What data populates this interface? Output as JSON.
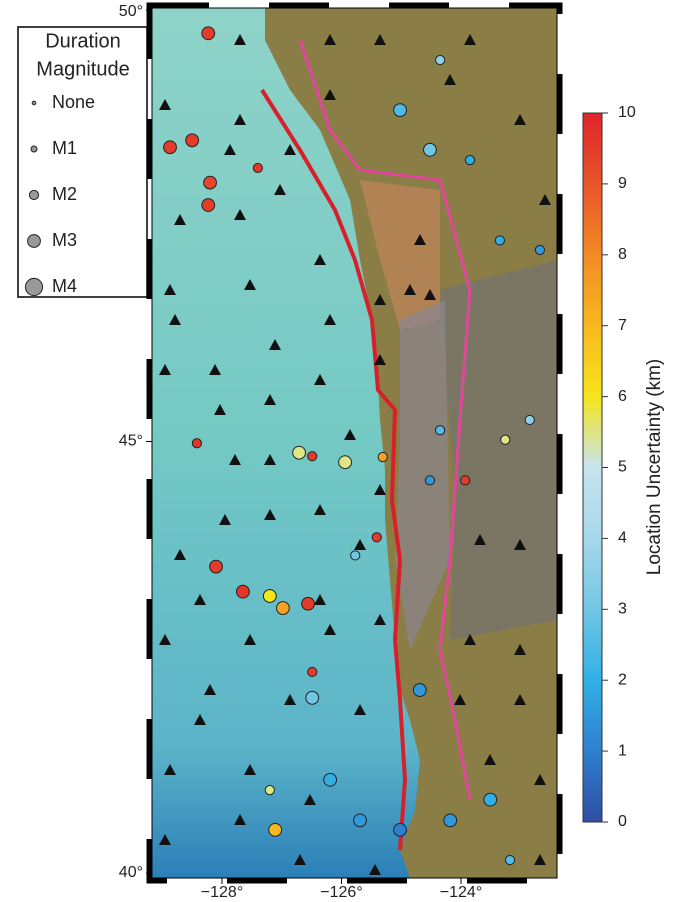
{
  "map": {
    "lat_ticks": [
      {
        "value": 50,
        "label": "50°"
      },
      {
        "value": 45,
        "label": "45°"
      },
      {
        "value": 40,
        "label": "40°"
      }
    ],
    "lon_ticks": [
      {
        "value": -128,
        "label": "−128°"
      },
      {
        "value": -126,
        "label": "−126°"
      },
      {
        "value": -124,
        "label": "−124°"
      }
    ],
    "legend": {
      "title": [
        "Duration",
        "Magnitude"
      ],
      "entries": [
        "None",
        "M1",
        "M2",
        "M3",
        "M4"
      ]
    },
    "colorbar": {
      "label": "Location Uncertainty (km)",
      "lim": [
        0,
        10
      ],
      "ticks": [
        0,
        1,
        2,
        3,
        4,
        5,
        6,
        7,
        8,
        9,
        10
      ],
      "colors": [
        "#2f4fa2",
        "#2f7fd0",
        "#31b0e6",
        "#71c6e4",
        "#a6d8ec",
        "#c7e4ee",
        "#f5e51b",
        "#f8b81f",
        "#f28a25",
        "#e8542a",
        "#e0242a"
      ]
    },
    "events": [
      {
        "lon": -128.23,
        "lat": 49.73,
        "unc": 9.5,
        "mag": 3
      },
      {
        "lon": -128.87,
        "lat": 48.41,
        "unc": 9.5,
        "mag": 3
      },
      {
        "lon": -128.5,
        "lat": 48.49,
        "unc": 9.5,
        "mag": 3
      },
      {
        "lon": -128.2,
        "lat": 48.0,
        "unc": 9.3,
        "mag": 3
      },
      {
        "lon": -128.23,
        "lat": 47.74,
        "unc": 9.5,
        "mag": 3
      },
      {
        "lon": -127.4,
        "lat": 48.17,
        "unc": 9.6,
        "mag": 2
      },
      {
        "lon": -128.42,
        "lat": 44.98,
        "unc": 9.6,
        "mag": 2
      },
      {
        "lon": -126.71,
        "lat": 44.87,
        "unc": 5.5,
        "mag": 3
      },
      {
        "lon": -126.49,
        "lat": 44.83,
        "unc": 9.5,
        "mag": 2
      },
      {
        "lon": -125.94,
        "lat": 44.76,
        "unc": 5.5,
        "mag": 3
      },
      {
        "lon": -125.31,
        "lat": 44.82,
        "unc": 7.5,
        "mag": 2
      },
      {
        "lon": -128.1,
        "lat": 43.55,
        "unc": 9.5,
        "mag": 3
      },
      {
        "lon": -127.65,
        "lat": 43.26,
        "unc": 9.6,
        "mag": 3
      },
      {
        "lon": -127.2,
        "lat": 43.21,
        "unc": 6,
        "mag": 3
      },
      {
        "lon": -126.98,
        "lat": 43.07,
        "unc": 7.5,
        "mag": 3
      },
      {
        "lon": -126.56,
        "lat": 43.12,
        "unc": 9.5,
        "mag": 3
      },
      {
        "lon": -126.49,
        "lat": 42.33,
        "unc": 9.5,
        "mag": 2
      },
      {
        "lon": -126.49,
        "lat": 42.03,
        "unc": 3,
        "mag": 3
      },
      {
        "lon": -125.77,
        "lat": 43.68,
        "unc": 3,
        "mag": 2
      },
      {
        "lon": -125.41,
        "lat": 43.89,
        "unc": 9.5,
        "mag": 2
      },
      {
        "lon": -125.02,
        "lat": 48.84,
        "unc": 2.5,
        "mag": 3
      },
      {
        "lon": -124.52,
        "lat": 48.38,
        "unc": 3,
        "mag": 3
      },
      {
        "lon": -123.85,
        "lat": 48.26,
        "unc": 2,
        "mag": 2
      },
      {
        "lon": -124.35,
        "lat": 49.42,
        "unc": 3.5,
        "mag": 2
      },
      {
        "lon": -123.35,
        "lat": 47.33,
        "unc": 2,
        "mag": 2
      },
      {
        "lon": -122.68,
        "lat": 47.22,
        "unc": 1.5,
        "mag": 2
      },
      {
        "lon": -124.35,
        "lat": 45.13,
        "unc": 2.5,
        "mag": 2
      },
      {
        "lon": -124.52,
        "lat": 44.55,
        "unc": 1.5,
        "mag": 2
      },
      {
        "lon": -123.26,
        "lat": 45.02,
        "unc": 5.5,
        "mag": 2
      },
      {
        "lon": -122.85,
        "lat": 45.25,
        "unc": 3.5,
        "mag": 2
      },
      {
        "lon": -123.93,
        "lat": 44.55,
        "unc": 9.5,
        "mag": 2
      },
      {
        "lon": -124.69,
        "lat": 42.12,
        "unc": 1.5,
        "mag": 3
      },
      {
        "lon": -126.19,
        "lat": 41.08,
        "unc": 2,
        "mag": 3
      },
      {
        "lon": -125.69,
        "lat": 40.61,
        "unc": 1.5,
        "mag": 3
      },
      {
        "lon": -125.02,
        "lat": 40.5,
        "unc": 1,
        "mag": 3
      },
      {
        "lon": -124.18,
        "lat": 40.61,
        "unc": 1.5,
        "mag": 3
      },
      {
        "lon": -123.51,
        "lat": 40.85,
        "unc": 2,
        "mag": 3
      },
      {
        "lon": -123.18,
        "lat": 40.15,
        "unc": 2.5,
        "mag": 2
      },
      {
        "lon": -127.2,
        "lat": 40.96,
        "unc": 5.5,
        "mag": 2
      },
      {
        "lon": -127.11,
        "lat": 40.5,
        "unc": 7,
        "mag": 3
      }
    ]
  }
}
